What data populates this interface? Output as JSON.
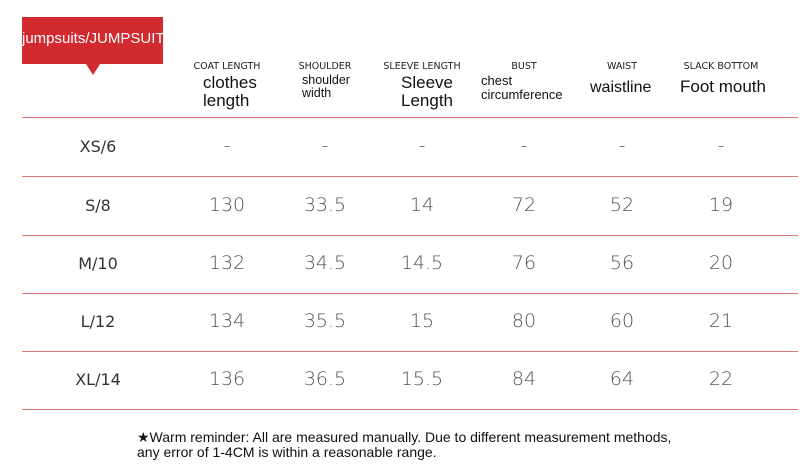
{
  "tag": "jumpsuits/JUMPSUIT",
  "columns": [
    {
      "code": "COAT LENGTH",
      "name": "clothes length"
    },
    {
      "code": "SHOULDER",
      "name": "shoulder width"
    },
    {
      "code": "SLEEVE LENGTH",
      "name": "Sleeve Length"
    },
    {
      "code": "BUST",
      "name": "chest circumference"
    },
    {
      "code": "WAIST",
      "name": "waistline"
    },
    {
      "code": "SLACK BOTTOM",
      "name": "Foot mouth"
    }
  ],
  "table": {
    "rows": [
      [
        "XS/6",
        "-",
        "-",
        "-",
        "-",
        "-",
        "-"
      ],
      [
        "S/8",
        "130",
        "33.5",
        "14",
        "72",
        "52",
        "19"
      ],
      [
        "M/10",
        "132",
        "34.5",
        "14.5",
        "76",
        "56",
        "20"
      ],
      [
        "L/12",
        "134",
        "35.5",
        "15",
        "80",
        "60",
        "21"
      ],
      [
        "XL/14",
        "136",
        "36.5",
        "15.5",
        "84",
        "64",
        "22"
      ]
    ]
  },
  "footnote": "★Warm reminder: All are measured manually. Due to different measurement methods, any error of 1-4CM is within a reasonable range."
}
